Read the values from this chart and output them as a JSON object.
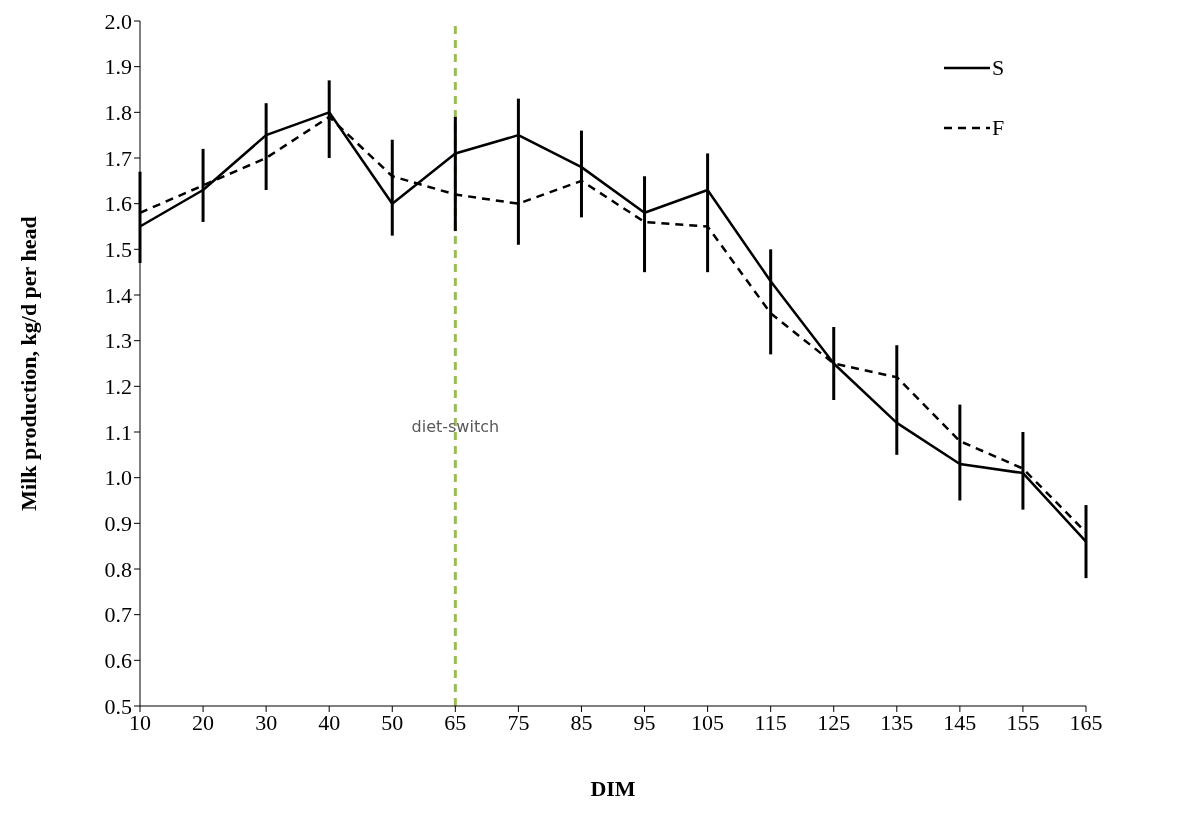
{
  "chart_data": {
    "type": "line",
    "xlabel": "DIM",
    "ylabel": "Milk production, kg/d per head",
    "categories": [
      "10",
      "20",
      "30",
      "40",
      "50",
      "65",
      "75",
      "85",
      "95",
      "105",
      "115",
      "125",
      "135",
      "145",
      "155",
      "165"
    ],
    "series": [
      {
        "name": "S",
        "color": "#000000",
        "line_style": "solid",
        "values": [
          1.55,
          1.63,
          1.75,
          1.8,
          1.6,
          1.71,
          1.75,
          1.68,
          1.58,
          1.63,
          1.43,
          1.25,
          1.12,
          1.03,
          1.01,
          0.86
        ],
        "errors": [
          [
            1.47,
            1.67
          ],
          [
            1.56,
            1.72
          ],
          [
            1.63,
            1.82
          ],
          [
            1.7,
            1.87
          ],
          [
            1.53,
            1.74
          ],
          [
            1.54,
            1.79
          ],
          [
            1.51,
            1.83
          ],
          [
            1.57,
            1.76
          ],
          [
            1.45,
            1.66
          ],
          [
            1.45,
            1.71
          ],
          [
            1.27,
            1.5
          ],
          [
            1.17,
            1.33
          ],
          [
            1.05,
            1.29
          ],
          [
            0.95,
            1.16
          ],
          [
            0.93,
            1.1
          ],
          [
            0.78,
            0.94
          ]
        ]
      },
      {
        "name": "F",
        "color": "#000000",
        "line_style": "dashed",
        "values": [
          1.58,
          1.64,
          1.7,
          1.79,
          1.66,
          1.62,
          1.6,
          1.65,
          1.56,
          1.55,
          1.36,
          1.25,
          1.22,
          1.08,
          1.02,
          0.88
        ]
      }
    ],
    "ylim": [
      0.5,
      2.0
    ],
    "yticks": [
      0.5,
      0.6,
      0.7,
      0.8,
      0.9,
      {
        "value": 1,
        "label": "1.0"
      },
      1.1,
      1.2,
      1.3,
      1.4,
      1.5,
      1.6,
      1.7,
      1.8,
      1.9,
      {
        "value": 2,
        "label": "2.0"
      }
    ],
    "ref_lines": [
      {
        "axis": "x",
        "value": "65",
        "label": "diet-switch",
        "color": "#9bbb59",
        "line_style": "dashed"
      }
    ],
    "legend": "top right",
    "grid": false
  }
}
